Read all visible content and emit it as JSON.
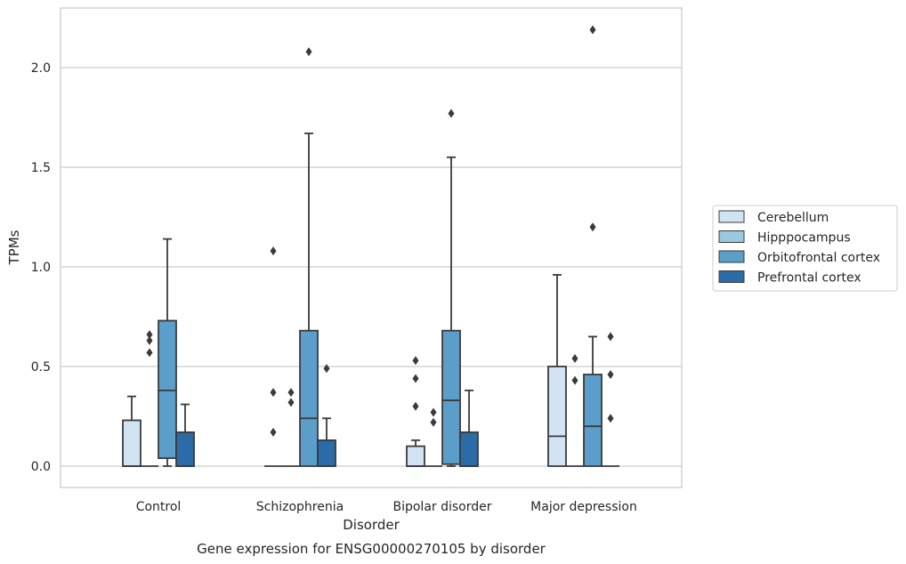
{
  "chart_data": {
    "type": "box",
    "caption": "Gene expression for ENSG00000270105 by disorder",
    "xlabel": "Disorder",
    "ylabel": "TPMs",
    "ylim": [
      -0.11,
      2.31
    ],
    "yticks": [
      0.0,
      0.5,
      1.0,
      1.5,
      2.0
    ],
    "ytick_labels": [
      "0.0",
      "0.5",
      "1.0",
      "1.5",
      "2.0"
    ],
    "grid": "horizontal",
    "legend_position": "right",
    "categories": [
      "Control",
      "Schizophrenia",
      "Bipolar disorder",
      "Major depression"
    ],
    "series": [
      {
        "name": "Cerebellum",
        "color": "#d2e3f3",
        "boxes": [
          {
            "whislo": 0,
            "q1": 0,
            "med": 0,
            "q3": 0.23,
            "whishi": 0.35,
            "fliers": []
          },
          {
            "whislo": 0,
            "q1": 0,
            "med": 0,
            "q3": 0,
            "whishi": 0,
            "fliers": [
              1.08,
              0.37,
              0.17
            ]
          },
          {
            "whislo": 0,
            "q1": 0,
            "med": 0,
            "q3": 0.1,
            "whishi": 0.13,
            "fliers": [
              0.53,
              0.44,
              0.3
            ]
          },
          {
            "whislo": 0,
            "q1": 0,
            "med": 0.15,
            "q3": 0.5,
            "whishi": 0.96,
            "fliers": []
          }
        ]
      },
      {
        "name": "Hipppocampus",
        "color": "#9ac8e0",
        "boxes": [
          {
            "whislo": 0,
            "q1": 0,
            "med": 0,
            "q3": 0,
            "whishi": 0,
            "fliers": [
              0.66,
              0.63,
              0.57
            ]
          },
          {
            "whislo": 0,
            "q1": 0,
            "med": 0,
            "q3": 0,
            "whishi": 0,
            "fliers": [
              0.37,
              0.32
            ]
          },
          {
            "whislo": 0,
            "q1": 0,
            "med": 0,
            "q3": 0,
            "whishi": 0,
            "fliers": [
              0.27,
              0.22
            ]
          },
          {
            "whislo": 0,
            "q1": 0,
            "med": 0,
            "q3": 0,
            "whishi": 0,
            "fliers": [
              0.54,
              0.43
            ]
          }
        ]
      },
      {
        "name": "Orbitofrontal cortex",
        "color": "#5a9ec9",
        "boxes": [
          {
            "whislo": 0,
            "q1": 0.04,
            "med": 0.38,
            "q3": 0.73,
            "whishi": 1.14,
            "fliers": []
          },
          {
            "whislo": 0,
            "q1": 0,
            "med": 0.24,
            "q3": 0.68,
            "whishi": 1.67,
            "fliers": [
              2.08
            ]
          },
          {
            "whislo": 0,
            "q1": 0.01,
            "med": 0.33,
            "q3": 0.68,
            "whishi": 1.55,
            "fliers": [
              1.77
            ]
          },
          {
            "whislo": 0,
            "q1": 0,
            "med": 0.2,
            "q3": 0.46,
            "whishi": 0.65,
            "fliers": [
              2.19,
              1.2
            ]
          }
        ]
      },
      {
        "name": "Prefrontal cortex",
        "color": "#2b6ba8",
        "boxes": [
          {
            "whislo": 0,
            "q1": 0,
            "med": 0,
            "q3": 0.17,
            "whishi": 0.31,
            "fliers": []
          },
          {
            "whislo": 0,
            "q1": 0,
            "med": 0,
            "q3": 0.13,
            "whishi": 0.24,
            "fliers": [
              0.49
            ]
          },
          {
            "whislo": 0,
            "q1": 0,
            "med": 0,
            "q3": 0.17,
            "whishi": 0.38,
            "fliers": []
          },
          {
            "whislo": 0,
            "q1": 0,
            "med": 0,
            "q3": 0,
            "whishi": 0,
            "fliers": [
              0.65,
              0.46,
              0.24
            ]
          }
        ]
      }
    ]
  }
}
